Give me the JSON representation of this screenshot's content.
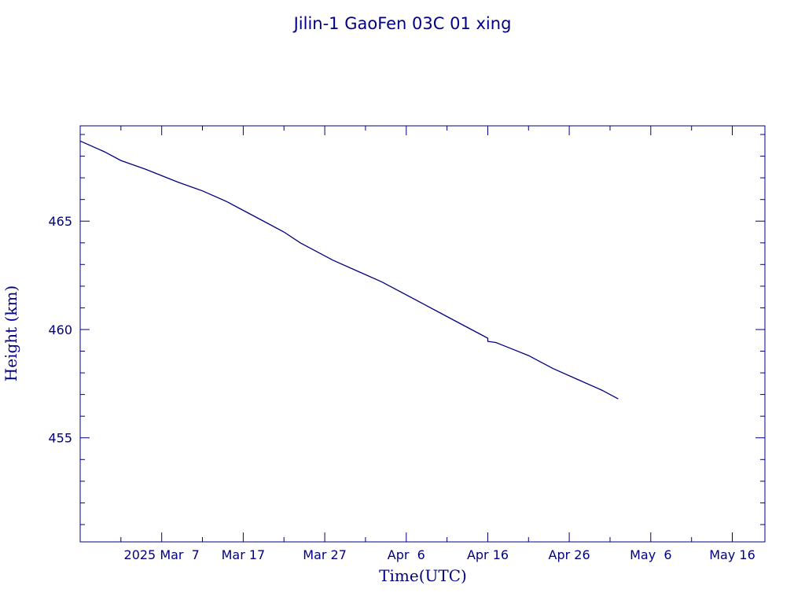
{
  "chart_data": {
    "type": "line",
    "title": "Jilin-1 GaoFen 03C 01 xing",
    "xlabel": "Time(UTC)",
    "ylabel": "Height (km)",
    "x_tick_labels": [
      "2025 Mar  7",
      "Mar 17",
      "Mar 27",
      "Apr  6",
      "Apr 16",
      "Apr 26",
      "May  6",
      "May 16"
    ],
    "x_tick_dates": [
      "2025-03-07",
      "2025-03-17",
      "2025-03-27",
      "2025-04-06",
      "2025-04-16",
      "2025-04-26",
      "2025-05-06",
      "2025-05-16"
    ],
    "xlim": [
      "2025-02-25",
      "2025-05-20"
    ],
    "y_tick_labels": [
      "455",
      "460",
      "465"
    ],
    "y_ticks": [
      455,
      460,
      465
    ],
    "ylim": [
      450.2,
      469.4
    ],
    "grid": false,
    "colors": {
      "foreground": "#000080",
      "background": "#ffffff"
    },
    "series": [
      {
        "x": [
          "2025-02-25",
          "2025-02-28",
          "2025-03-02",
          "2025-03-05",
          "2025-03-07",
          "2025-03-09",
          "2025-03-12",
          "2025-03-15",
          "2025-03-17",
          "2025-03-20",
          "2025-03-22",
          "2025-03-24",
          "2025-03-26",
          "2025-03-28",
          "2025-03-31",
          "2025-04-03",
          "2025-04-05",
          "2025-04-08",
          "2025-04-11",
          "2025-04-13",
          "2025-04-15",
          "2025-04-16",
          "2025-04-16",
          "2025-04-17",
          "2025-04-19",
          "2025-04-21",
          "2025-04-24",
          "2025-04-27",
          "2025-04-30",
          "2025-05-02"
        ],
        "y": [
          468.7,
          468.2,
          467.8,
          467.4,
          467.1,
          466.8,
          466.4,
          465.9,
          465.5,
          464.9,
          464.5,
          464.0,
          463.6,
          463.2,
          462.7,
          462.2,
          461.8,
          461.2,
          460.6,
          460.2,
          459.8,
          459.6,
          459.45,
          459.4,
          459.1,
          458.8,
          458.2,
          457.7,
          457.2,
          456.8
        ]
      }
    ]
  }
}
